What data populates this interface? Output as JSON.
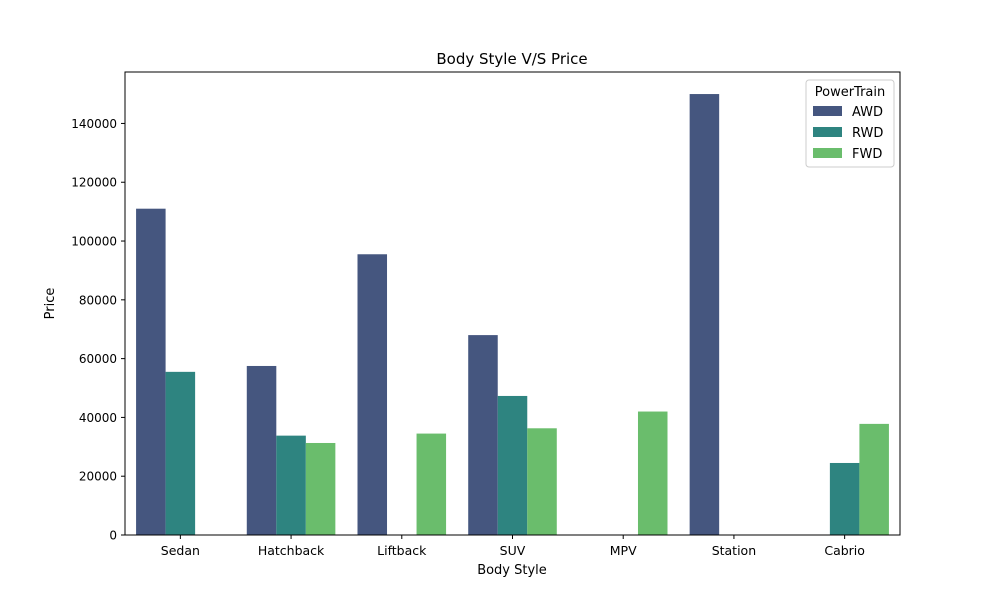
{
  "chart_data": {
    "type": "bar",
    "title": "Body Style V/S Price",
    "xlabel": "Body Style",
    "ylabel": "Price",
    "categories": [
      "Sedan",
      "Hatchback",
      "Liftback",
      "SUV",
      "MPV",
      "Station",
      "Cabrio"
    ],
    "series": [
      {
        "name": "AWD",
        "color": "#45567f",
        "values": [
          111000,
          57500,
          95500,
          68000,
          null,
          150000,
          null
        ]
      },
      {
        "name": "RWD",
        "color": "#2e8480",
        "values": [
          55500,
          33800,
          null,
          47300,
          null,
          null,
          24500
        ]
      },
      {
        "name": "FWD",
        "color": "#6abd6c",
        "values": [
          null,
          31300,
          34500,
          36300,
          42000,
          null,
          37800
        ]
      }
    ],
    "ylim": [
      0,
      157500
    ],
    "yticks": [
      0,
      20000,
      40000,
      60000,
      80000,
      100000,
      120000,
      140000
    ],
    "grid": false,
    "legend": {
      "title": "PowerTrain",
      "placement": "top-right"
    }
  }
}
